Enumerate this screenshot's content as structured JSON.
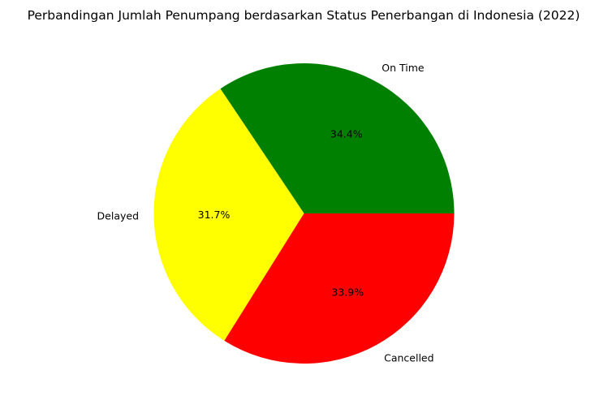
{
  "chart_data": {
    "type": "pie",
    "title": "Perbandingan Jumlah Penumpang berdasarkan Status Penerbangan di Indonesia (2022)",
    "start_angle_deg": 0,
    "direction": "counterclockwise",
    "slices": [
      {
        "label": "On Time",
        "value": 34.4,
        "percent_label": "34.4%",
        "color": "#008000"
      },
      {
        "label": "Delayed",
        "value": 31.7,
        "percent_label": "31.7%",
        "color": "#ffff00"
      },
      {
        "label": "Cancelled",
        "value": 33.9,
        "percent_label": "33.9%",
        "color": "#ff0000"
      }
    ]
  }
}
